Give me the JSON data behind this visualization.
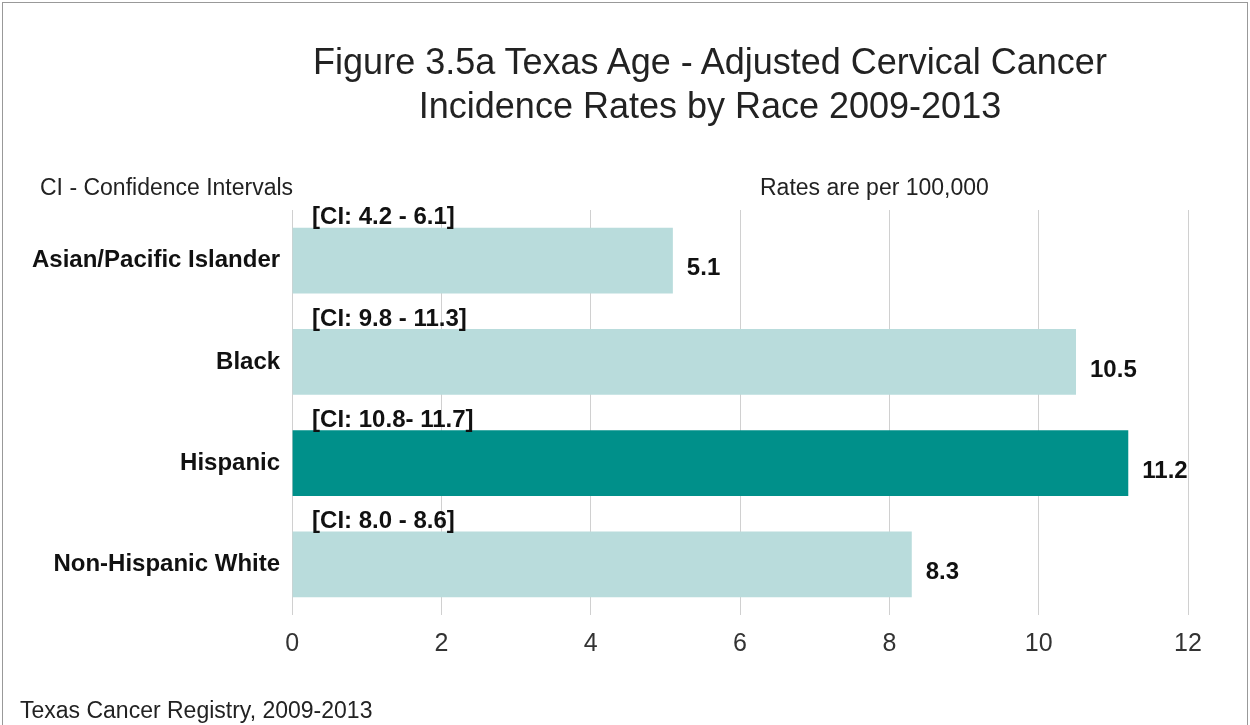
{
  "chart_data": {
    "type": "bar",
    "orientation": "horizontal",
    "title": "Figure 3.5a Texas Age - Adjusted Cervical Cancer Incidence Rates by Race 2009-2013",
    "categories": [
      "Asian/Pacific Islander",
      "Black",
      "Hispanic",
      "Non-Hispanic White"
    ],
    "values": [
      5.1,
      10.5,
      11.2,
      8.3
    ],
    "colors": [
      "#b9dcdc",
      "#b9dcdc",
      "#00908a",
      "#b9dcdc"
    ],
    "xlim": [
      0,
      12
    ],
    "xticks": [
      0,
      2,
      4,
      6,
      8,
      10,
      12
    ],
    "grid": "x",
    "data_labels": true,
    "legend": false,
    "annotations": [
      "CI - Confidence Intervals",
      "Rates are per 100,000",
      "Texas Cancer Registry, 2009-2013",
      "[CI: 4.2 - 6.1]",
      "[CI: 9.8 - 11.3]",
      "[CI: 10.8- 11.7]",
      "[CI: 8.0 - 8.6]"
    ]
  }
}
